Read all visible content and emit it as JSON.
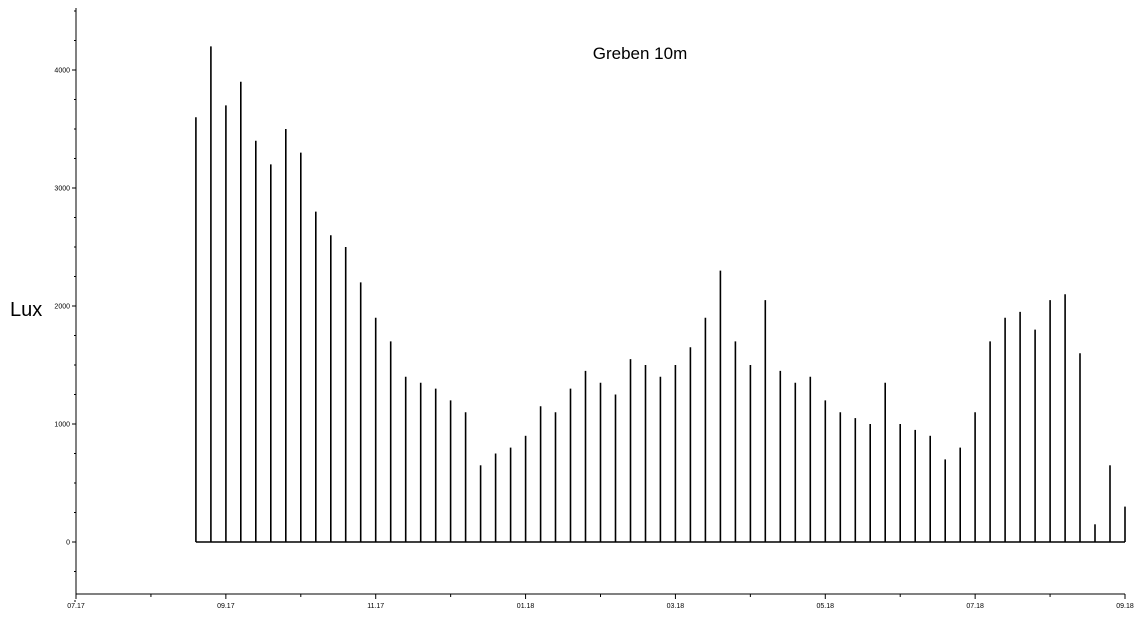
{
  "chart_data": {
    "type": "bar",
    "title": "Greben 10m",
    "xlabel": "",
    "ylabel": "Lux",
    "x_range": [
      "07.17",
      "09.18"
    ],
    "ylim": [
      -500,
      4600
    ],
    "x_ticks": [
      "07.17",
      "09.17",
      "11.17",
      "01.18",
      "03.18",
      "05.18",
      "07.18",
      "09.18"
    ],
    "y_ticks": [
      0,
      1000,
      2000,
      3000,
      4000
    ],
    "grid": false,
    "legend": "none",
    "bar_color": "#000000",
    "series": [
      {
        "x_months": [
          1.6,
          1.8,
          2.0,
          2.2,
          2.4,
          2.6,
          2.8,
          3.0,
          3.2,
          3.4,
          3.6,
          3.8,
          4.0,
          4.2,
          4.4,
          4.6,
          4.8,
          5.0,
          5.2,
          5.4,
          5.6,
          5.8,
          6.0,
          6.2,
          6.4,
          6.6,
          6.8,
          7.0,
          7.2,
          7.4,
          7.6,
          7.8,
          8.0,
          8.2,
          8.4,
          8.6,
          8.8,
          9.0,
          9.2,
          9.4,
          9.6,
          9.8,
          10.0,
          10.2,
          10.4,
          10.6,
          10.8,
          11.0,
          11.2,
          11.4,
          11.6,
          11.8,
          12.0,
          12.2,
          12.4,
          12.6,
          12.8,
          13.0,
          13.2,
          13.4,
          13.6,
          13.8,
          14.0
        ],
        "values": [
          3600,
          4200,
          3700,
          3900,
          3400,
          3200,
          3500,
          3300,
          2800,
          2600,
          2500,
          2200,
          1900,
          1700,
          1400,
          1350,
          1300,
          1200,
          1100,
          650,
          750,
          800,
          900,
          1150,
          1100,
          1300,
          1450,
          1350,
          1250,
          1550,
          1500,
          1400,
          1500,
          1650,
          1900,
          2300,
          1700,
          1500,
          2050,
          1450,
          1350,
          1400,
          1200,
          1100,
          1050,
          1000,
          1350,
          1000,
          950,
          900,
          700,
          800,
          1100,
          1700,
          1900,
          1950,
          1800,
          2050,
          2100,
          1600,
          150,
          650,
          300
        ]
      }
    ]
  }
}
